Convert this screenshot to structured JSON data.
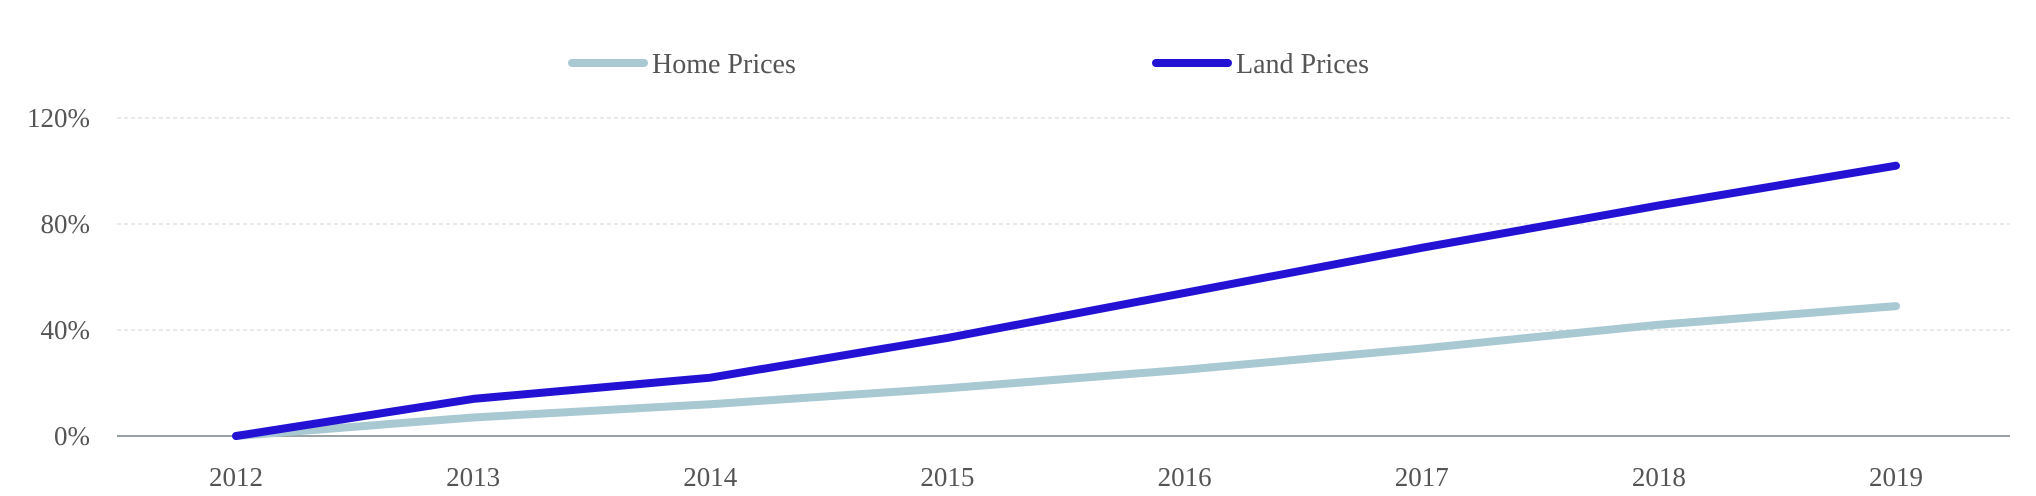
{
  "chart_data": {
    "type": "line",
    "title": "",
    "xlabel": "",
    "ylabel": "",
    "x": [
      "2012",
      "2013",
      "2014",
      "2015",
      "2016",
      "2017",
      "2018",
      "2019"
    ],
    "ylim": [
      0,
      120
    ],
    "yticks": [
      0,
      40,
      80,
      120
    ],
    "ytick_labels": [
      "0%",
      "40%",
      "80%",
      "120%"
    ],
    "grid": true,
    "legend_position": "top",
    "series": [
      {
        "name": "Home Prices",
        "color": "#a8c8d2",
        "values": [
          0,
          7,
          12,
          18,
          25,
          33,
          42,
          49
        ]
      },
      {
        "name": "Land Prices",
        "color": "#2311d4",
        "values": [
          0,
          14,
          22,
          37,
          54,
          71,
          87,
          102
        ]
      }
    ]
  }
}
